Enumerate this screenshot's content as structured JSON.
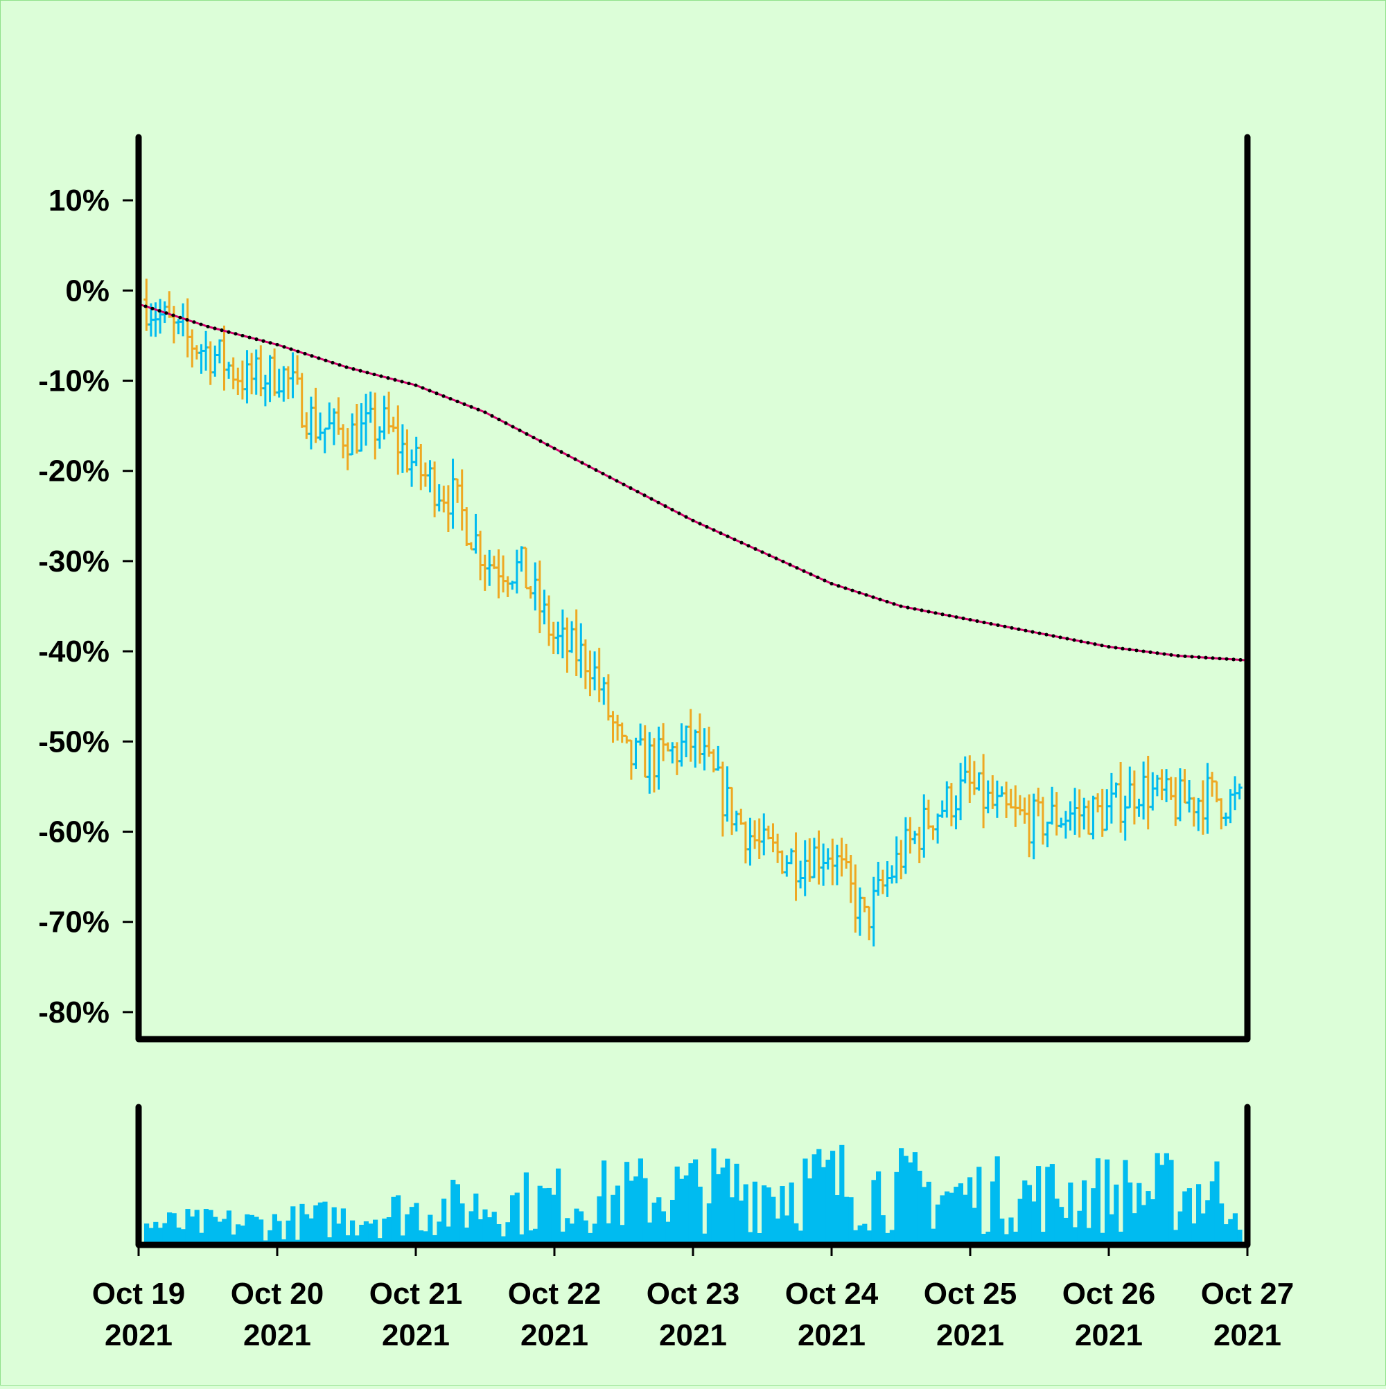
{
  "colors": {
    "background": "#dcfed8",
    "up": "#00bbf0",
    "down": "#eea822",
    "volume": "#00bbf0",
    "trend_line": "#d6006d",
    "trend_dots": "#000000",
    "axis": "#000000"
  },
  "chart_data": {
    "type": "ohlc",
    "title": "",
    "xlabel": "",
    "ylabel": "",
    "y_unit": "%",
    "ylim": [
      -83,
      17
    ],
    "y_ticks": [
      10,
      0,
      -10,
      -20,
      -30,
      -40,
      -50,
      -60,
      -70,
      -80
    ],
    "y_tick_labels": [
      "10%",
      "0%",
      "-10%",
      "-20%",
      "-30%",
      "-40%",
      "-50%",
      "-60%",
      "-70%",
      "-80%"
    ],
    "x_range": [
      "2021-10-19",
      "2021-10-27"
    ],
    "x_ticks": [
      "2021-10-19",
      "2021-10-20",
      "2021-10-21",
      "2021-10-22",
      "2021-10-23",
      "2021-10-24",
      "2021-10-25",
      "2021-10-26",
      "2021-10-27"
    ],
    "x_tick_labels": [
      {
        "line1": "Oct 19",
        "line2": "2021"
      },
      {
        "line1": "Oct 20",
        "line2": "2021"
      },
      {
        "line1": "Oct 21",
        "line2": "2021"
      },
      {
        "line1": "Oct 22",
        "line2": "2021"
      },
      {
        "line1": "Oct 23",
        "line2": "2021"
      },
      {
        "line1": "Oct 24",
        "line2": "2021"
      },
      {
        "line1": "Oct 25",
        "line2": "2021"
      },
      {
        "line1": "Oct 26",
        "line2": "2021"
      },
      {
        "line1": "Oct 27",
        "line2": "2021"
      }
    ],
    "bars_per_day": 30,
    "close_path": [
      {
        "x": 0,
        "y": -1
      },
      {
        "x": 0.25,
        "y": -5
      },
      {
        "x": 0.5,
        "y": -7
      },
      {
        "x": 0.75,
        "y": -10
      },
      {
        "x": 1,
        "y": -9
      },
      {
        "x": 1.25,
        "y": -15
      },
      {
        "x": 1.5,
        "y": -16
      },
      {
        "x": 1.75,
        "y": -15
      },
      {
        "x": 2,
        "y": -20
      },
      {
        "x": 2.25,
        "y": -23
      },
      {
        "x": 2.5,
        "y": -30
      },
      {
        "x": 2.75,
        "y": -31
      },
      {
        "x": 3,
        "y": -39
      },
      {
        "x": 3.25,
        "y": -41
      },
      {
        "x": 3.5,
        "y": -52
      },
      {
        "x": 3.75,
        "y": -52
      },
      {
        "x": 4,
        "y": -50
      },
      {
        "x": 4.25,
        "y": -57
      },
      {
        "x": 4.5,
        "y": -62
      },
      {
        "x": 4.75,
        "y": -63
      },
      {
        "x": 5,
        "y": -62
      },
      {
        "x": 5.25,
        "y": -70
      },
      {
        "x": 5.5,
        "y": -63
      },
      {
        "x": 5.75,
        "y": -58
      },
      {
        "x": 6,
        "y": -55
      },
      {
        "x": 6.25,
        "y": -58
      },
      {
        "x": 6.5,
        "y": -59
      },
      {
        "x": 6.75,
        "y": -58
      },
      {
        "x": 7,
        "y": -58
      },
      {
        "x": 7.25,
        "y": -55
      },
      {
        "x": 7.5,
        "y": -57
      },
      {
        "x": 7.75,
        "y": -56
      },
      {
        "x": 8,
        "y": -57
      }
    ],
    "series": [
      {
        "name": "",
        "type": "moving_average",
        "values": [
          {
            "x": 0,
            "y": -1.5
          },
          {
            "x": 0.5,
            "y": -4
          },
          {
            "x": 1,
            "y": -6
          },
          {
            "x": 1.5,
            "y": -8.5
          },
          {
            "x": 2,
            "y": -10.5
          },
          {
            "x": 2.5,
            "y": -13.5
          },
          {
            "x": 3,
            "y": -17.5
          },
          {
            "x": 3.5,
            "y": -21.5
          },
          {
            "x": 4,
            "y": -25.5
          },
          {
            "x": 4.5,
            "y": -29
          },
          {
            "x": 5,
            "y": -32.5
          },
          {
            "x": 5.5,
            "y": -35
          },
          {
            "x": 6,
            "y": -36.5
          },
          {
            "x": 6.5,
            "y": -38
          },
          {
            "x": 7,
            "y": -39.5
          },
          {
            "x": 7.5,
            "y": -40.5
          },
          {
            "x": 8,
            "y": -41
          }
        ]
      }
    ],
    "volume": {
      "visible": true,
      "levels": [
        {
          "x": 0,
          "v": 0.2
        },
        {
          "x": 1,
          "v": 0.22
        },
        {
          "x": 2,
          "v": 0.35
        },
        {
          "x": 3,
          "v": 0.45
        },
        {
          "x": 4,
          "v": 0.55
        },
        {
          "x": 5,
          "v": 0.62
        },
        {
          "x": 6,
          "v": 0.5
        },
        {
          "x": 7,
          "v": 0.52
        },
        {
          "x": 8,
          "v": 0.55
        }
      ]
    },
    "grid": false,
    "legend": "none"
  }
}
